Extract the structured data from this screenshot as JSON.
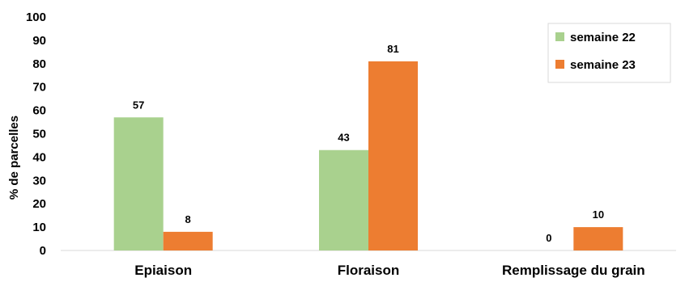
{
  "chart_data": {
    "type": "bar",
    "categories": [
      "Epiaison",
      "Floraison",
      "Remplissage du grain"
    ],
    "series": [
      {
        "name": "semaine 22",
        "values": [
          57,
          43,
          0
        ],
        "labels": [
          "57",
          "43",
          "0"
        ],
        "color": "#A9D18E"
      },
      {
        "name": "semaine 23",
        "values": [
          8,
          81,
          10
        ],
        "labels": [
          "8",
          "81",
          "10"
        ],
        "color": "#ED7D31"
      }
    ],
    "yticks": [
      "0",
      "10",
      "20",
      "30",
      "40",
      "50",
      "60",
      "70",
      "80",
      "90",
      "100"
    ],
    "ylabel": "% de parcelles",
    "xlabel": "",
    "title": "",
    "ylim": [
      0,
      100
    ],
    "grid": false,
    "legend_position": "top-right",
    "axis_color": "#D9D9D9"
  }
}
